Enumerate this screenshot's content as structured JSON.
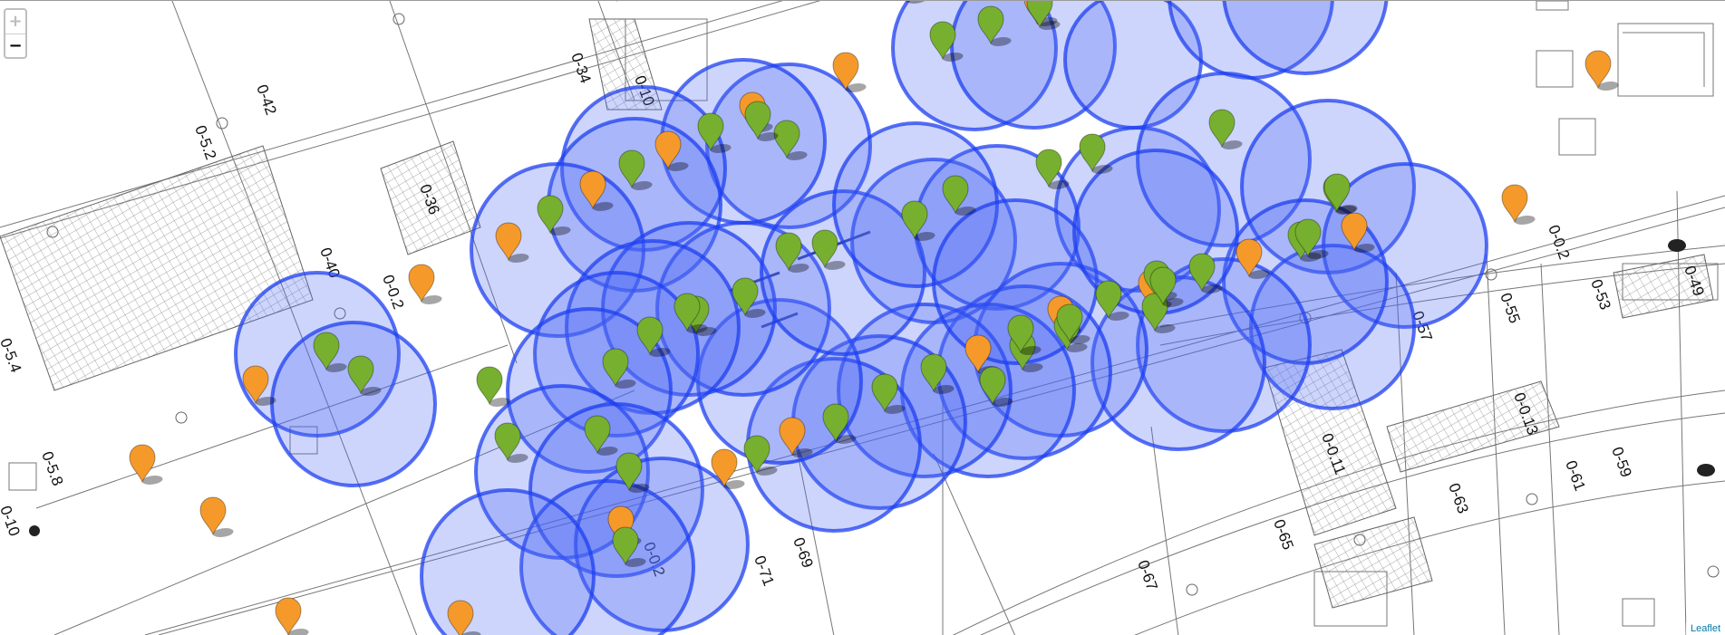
{
  "controls": {
    "zoom_in": "+",
    "zoom_out": "−"
  },
  "attribution": "Leaflet",
  "colors": {
    "circle_fill": "#4a68f5",
    "circle_stroke": "#1e3ff0",
    "marker_green": "#77b02e",
    "marker_orange": "#f59a2a"
  },
  "floorplan_labels": [
    "0-34",
    "0-10",
    "0-42",
    "0-5.2",
    "0-36",
    "0-40",
    "0-0.2",
    "0-5.4",
    "0-5.8",
    "0-10",
    "0-0.2",
    "0-71",
    "0-69",
    "0-67",
    "0-65",
    "0-57",
    "0-55",
    "0-53",
    "0-0.2",
    "0-49",
    "0-0.13",
    "0-0.11",
    "0-63",
    "0-61",
    "0-59"
  ],
  "coverage_circles": 44,
  "markers": {
    "green": 45,
    "orange": 23
  }
}
